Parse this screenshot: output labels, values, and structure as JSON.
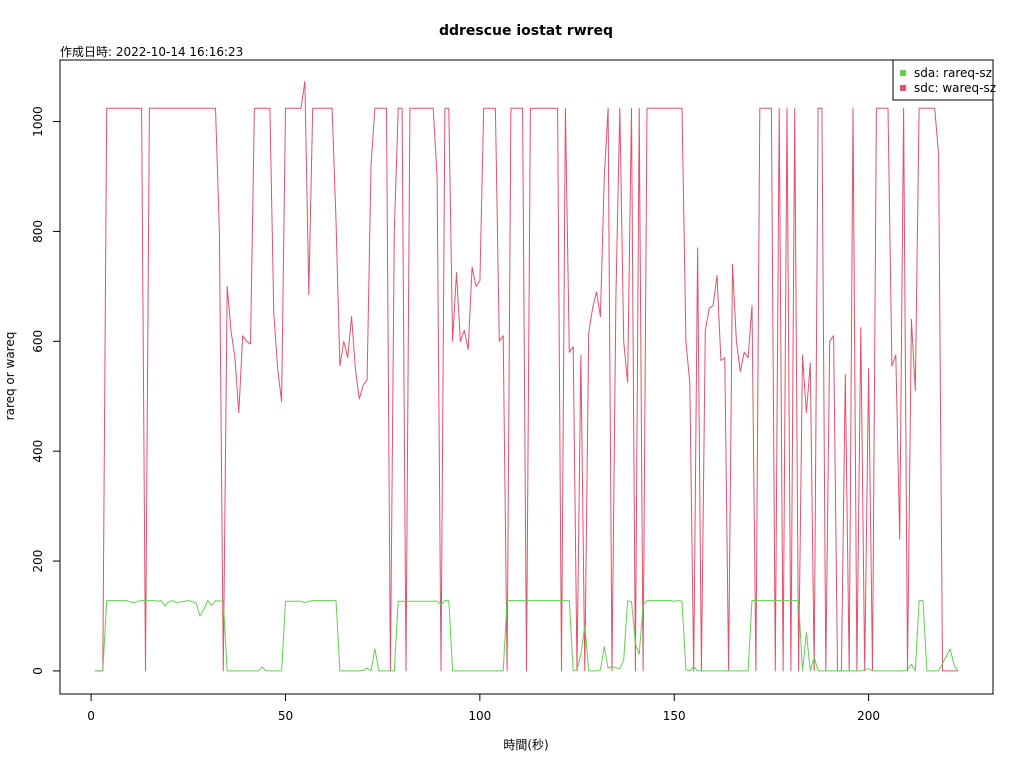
{
  "chart_data": {
    "type": "line",
    "title": "ddrescue iostat rwreq",
    "subtitle": "作成日時: 2022-10-14 16:16:23",
    "xlabel": "時間(秒)",
    "ylabel": "rareq or wareq",
    "xlim": [
      -8,
      232
    ],
    "ylim": [
      -42,
      1112
    ],
    "x_ticks": [
      0,
      50,
      100,
      150,
      200
    ],
    "y_ticks": [
      0,
      200,
      400,
      600,
      800,
      1000
    ],
    "legend_position": "top-right",
    "grid": false,
    "series": [
      {
        "name": "sda: rareq-sz",
        "color": "#61D04F",
        "points": [
          [
            1,
            0
          ],
          [
            3,
            0
          ],
          [
            4,
            128
          ],
          [
            8,
            128
          ],
          [
            9,
            128
          ],
          [
            10,
            126
          ],
          [
            11,
            124
          ],
          [
            12,
            127
          ],
          [
            13,
            128
          ],
          [
            14,
            128
          ],
          [
            15,
            128
          ],
          [
            16,
            128
          ],
          [
            17,
            127
          ],
          [
            18,
            128
          ],
          [
            19,
            118
          ],
          [
            20,
            126
          ],
          [
            21,
            128
          ],
          [
            22,
            124
          ],
          [
            23,
            126
          ],
          [
            24,
            127
          ],
          [
            25,
            128
          ],
          [
            26,
            126
          ],
          [
            27,
            124
          ],
          [
            28,
            100
          ],
          [
            29,
            112
          ],
          [
            30,
            128
          ],
          [
            31,
            119
          ],
          [
            32,
            128
          ],
          [
            33,
            127
          ],
          [
            34,
            128
          ],
          [
            35,
            0
          ],
          [
            36,
            0
          ],
          [
            43,
            0
          ],
          [
            44,
            7
          ],
          [
            45,
            0
          ],
          [
            49,
            0
          ],
          [
            50,
            127
          ],
          [
            54,
            127
          ],
          [
            55,
            124
          ],
          [
            56,
            127
          ],
          [
            57,
            128
          ],
          [
            61,
            128
          ],
          [
            63,
            128
          ],
          [
            64,
            0
          ],
          [
            69,
            0
          ],
          [
            70,
            1
          ],
          [
            71,
            5
          ],
          [
            72,
            0
          ],
          [
            73,
            40
          ],
          [
            74,
            0
          ],
          [
            76,
            0
          ],
          [
            78,
            0
          ],
          [
            79,
            127
          ],
          [
            82,
            127
          ],
          [
            89,
            127
          ],
          [
            90,
            120
          ],
          [
            91,
            128
          ],
          [
            92,
            128
          ],
          [
            93,
            0
          ],
          [
            106,
            0
          ],
          [
            107,
            128
          ],
          [
            123,
            128
          ],
          [
            124,
            0
          ],
          [
            125,
            2
          ],
          [
            126,
            30
          ],
          [
            127,
            82
          ],
          [
            128,
            0
          ],
          [
            130,
            0
          ],
          [
            131,
            2
          ],
          [
            132,
            44
          ],
          [
            133,
            5
          ],
          [
            134,
            8
          ],
          [
            135,
            6
          ],
          [
            136,
            4
          ],
          [
            137,
            20
          ],
          [
            138,
            128
          ],
          [
            139,
            126
          ],
          [
            140,
            50
          ],
          [
            141,
            30
          ],
          [
            142,
            120
          ],
          [
            143,
            128
          ],
          [
            149,
            128
          ],
          [
            150,
            127
          ],
          [
            151,
            128
          ],
          [
            152,
            127
          ],
          [
            153,
            2
          ],
          [
            154,
            0
          ],
          [
            155,
            8
          ],
          [
            156,
            0
          ],
          [
            165,
            0
          ],
          [
            166,
            0
          ],
          [
            169,
            0
          ],
          [
            170,
            128
          ],
          [
            178,
            128
          ],
          [
            182,
            128
          ],
          [
            183,
            0
          ],
          [
            184,
            70
          ],
          [
            185,
            0
          ],
          [
            186,
            25
          ],
          [
            187,
            0
          ],
          [
            196,
            0
          ],
          [
            197,
            0
          ],
          [
            198,
            0
          ],
          [
            199,
            2
          ],
          [
            200,
            4
          ],
          [
            201,
            0
          ],
          [
            209,
            0
          ],
          [
            210,
            2
          ],
          [
            211,
            12
          ],
          [
            212,
            0
          ],
          [
            213,
            128
          ],
          [
            214,
            128
          ],
          [
            215,
            0
          ],
          [
            218,
            0
          ],
          [
            221,
            40
          ],
          [
            222,
            10
          ],
          [
            223,
            0
          ]
        ]
      },
      {
        "name": "sdc: wareq-sz",
        "color": "#DF536B",
        "points": [
          [
            1,
            0
          ],
          [
            2,
            0
          ],
          [
            3,
            0
          ],
          [
            4,
            1024
          ],
          [
            13,
            1024
          ],
          [
            14,
            0
          ],
          [
            15,
            1024
          ],
          [
            32,
            1024
          ],
          [
            33,
            800
          ],
          [
            34,
            0
          ],
          [
            35,
            700
          ],
          [
            36,
            620
          ],
          [
            37,
            570
          ],
          [
            38,
            470
          ],
          [
            39,
            610
          ],
          [
            40,
            600
          ],
          [
            41,
            595
          ],
          [
            42,
            1024
          ],
          [
            46,
            1024
          ],
          [
            47,
            650
          ],
          [
            48,
            550
          ],
          [
            49,
            490
          ],
          [
            50,
            1024
          ],
          [
            54,
            1024
          ],
          [
            55,
            1073
          ],
          [
            56,
            685
          ],
          [
            57,
            1024
          ],
          [
            62,
            1024
          ],
          [
            63,
            820
          ],
          [
            64,
            555
          ],
          [
            65,
            600
          ],
          [
            66,
            570
          ],
          [
            67,
            645
          ],
          [
            68,
            550
          ],
          [
            69,
            495
          ],
          [
            70,
            520
          ],
          [
            71,
            530
          ],
          [
            72,
            920
          ],
          [
            73,
            1024
          ],
          [
            76,
            1024
          ],
          [
            77,
            0
          ],
          [
            78,
            800
          ],
          [
            79,
            1024
          ],
          [
            80,
            1024
          ],
          [
            81,
            0
          ],
          [
            82,
            1024
          ],
          [
            88,
            1024
          ],
          [
            89,
            900
          ],
          [
            90,
            0
          ],
          [
            91,
            1024
          ],
          [
            92,
            1024
          ],
          [
            93,
            600
          ],
          [
            94,
            725
          ],
          [
            95,
            600
          ],
          [
            96,
            620
          ],
          [
            97,
            585
          ],
          [
            98,
            735
          ],
          [
            99,
            700
          ],
          [
            100,
            710
          ],
          [
            101,
            1024
          ],
          [
            104,
            1024
          ],
          [
            105,
            600
          ],
          [
            106,
            610
          ],
          [
            107,
            0
          ],
          [
            108,
            1024
          ],
          [
            111,
            1024
          ],
          [
            112,
            0
          ],
          [
            113,
            1024
          ],
          [
            120,
            1024
          ],
          [
            121,
            0
          ],
          [
            122,
            1024
          ],
          [
            123,
            580
          ],
          [
            124,
            590
          ],
          [
            125,
            0
          ],
          [
            126,
            575
          ],
          [
            127,
            0
          ],
          [
            128,
            615
          ],
          [
            129,
            660
          ],
          [
            130,
            690
          ],
          [
            131,
            645
          ],
          [
            132,
            900
          ],
          [
            133,
            1024
          ],
          [
            134,
            0
          ],
          [
            135,
            680
          ],
          [
            136,
            1024
          ],
          [
            137,
            600
          ],
          [
            138,
            525
          ],
          [
            139,
            1024
          ],
          [
            140,
            0
          ],
          [
            141,
            1024
          ],
          [
            142,
            0
          ],
          [
            143,
            1024
          ],
          [
            151,
            1024
          ],
          [
            152,
            1024
          ],
          [
            153,
            600
          ],
          [
            154,
            525
          ],
          [
            155,
            0
          ],
          [
            156,
            770
          ],
          [
            157,
            0
          ],
          [
            158,
            620
          ],
          [
            159,
            660
          ],
          [
            160,
            665
          ],
          [
            161,
            720
          ],
          [
            162,
            565
          ],
          [
            163,
            570
          ],
          [
            164,
            0
          ],
          [
            165,
            740
          ],
          [
            166,
            600
          ],
          [
            167,
            545
          ],
          [
            168,
            580
          ],
          [
            169,
            570
          ],
          [
            170,
            665
          ],
          [
            171,
            0
          ],
          [
            172,
            1024
          ],
          [
            175,
            1024
          ],
          [
            176,
            0
          ],
          [
            177,
            1024
          ],
          [
            178,
            0
          ],
          [
            179,
            1024
          ],
          [
            180,
            0
          ],
          [
            181,
            1024
          ],
          [
            182,
            0
          ],
          [
            183,
            575
          ],
          [
            184,
            470
          ],
          [
            185,
            560
          ],
          [
            186,
            0
          ],
          [
            187,
            1024
          ],
          [
            188,
            1024
          ],
          [
            189,
            0
          ],
          [
            190,
            600
          ],
          [
            191,
            610
          ],
          [
            192,
            0
          ],
          [
            193,
            0
          ],
          [
            194,
            540
          ],
          [
            195,
            0
          ],
          [
            196,
            1024
          ],
          [
            197,
            0
          ],
          [
            198,
            625
          ],
          [
            199,
            0
          ],
          [
            200,
            550
          ],
          [
            201,
            0
          ],
          [
            202,
            1024
          ],
          [
            205,
            1024
          ],
          [
            206,
            555
          ],
          [
            207,
            575
          ],
          [
            208,
            240
          ],
          [
            209,
            1024
          ],
          [
            210,
            0
          ],
          [
            211,
            640
          ],
          [
            212,
            510
          ],
          [
            213,
            1024
          ],
          [
            217,
            1024
          ],
          [
            218,
            940
          ],
          [
            219,
            0
          ],
          [
            220,
            0
          ],
          [
            221,
            0
          ],
          [
            222,
            0
          ],
          [
            223,
            0
          ]
        ]
      }
    ]
  }
}
